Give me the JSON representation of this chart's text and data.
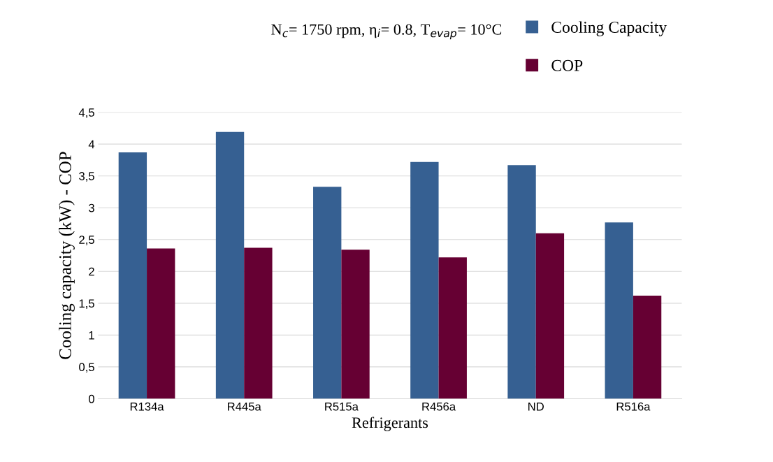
{
  "chart_data": {
    "type": "bar",
    "title": "N$_{c}$= 1750 rpm, η$_{i}$= 0.8, T$_{evap}$= 10°C",
    "xlabel": "Refrigerants",
    "ylabel": "Cooling capacity (kW) - COP",
    "categories": [
      "R134a",
      "R445a",
      "R515a",
      "R456a",
      "ND",
      "R516a"
    ],
    "series": [
      {
        "name": "Cooling Capacity",
        "color": "#366092",
        "values": [
          3.87,
          4.19,
          3.33,
          3.72,
          3.67,
          2.77
        ]
      },
      {
        "name": "COP",
        "color": "#660033",
        "values": [
          2.36,
          2.37,
          2.34,
          2.22,
          2.6,
          1.62
        ]
      }
    ],
    "ylim": [
      0,
      4.5
    ],
    "yticks": [
      0,
      {
        "value": 0.5,
        "label": "0,5"
      },
      1,
      {
        "value": 1.5,
        "label": "1,5"
      },
      2,
      {
        "value": 2.5,
        "label": "2,5"
      },
      3,
      {
        "value": 3.5,
        "label": "3,5"
      },
      4,
      {
        "value": 4.5,
        "label": "4,5"
      }
    ],
    "grid": "y",
    "legend": "top right"
  }
}
